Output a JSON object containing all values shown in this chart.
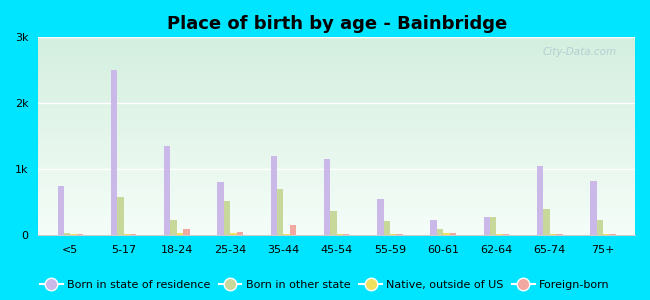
{
  "title": "Place of birth by age - Bainbridge",
  "categories": [
    "<5",
    "5-17",
    "18-24",
    "25-34",
    "35-44",
    "45-54",
    "55-59",
    "60-61",
    "62-64",
    "65-74",
    "75+"
  ],
  "series": {
    "Born in state of residence": [
      750,
      2500,
      1350,
      800,
      1200,
      1150,
      550,
      230,
      280,
      1050,
      820
    ],
    "Born in other state": [
      30,
      580,
      230,
      520,
      700,
      370,
      220,
      100,
      280,
      400,
      230
    ],
    "Native, outside of US": [
      15,
      25,
      40,
      40,
      25,
      15,
      15,
      35,
      20,
      15,
      18
    ],
    "Foreign-born": [
      12,
      25,
      90,
      50,
      160,
      25,
      15,
      40,
      22,
      15,
      22
    ]
  },
  "colors": {
    "Born in state of residence": "#c9b8e8",
    "Born in other state": "#c8d89a",
    "Native, outside of US": "#f0e060",
    "Foreign-born": "#f0a8a0"
  },
  "ylim": [
    0,
    3000
  ],
  "yticks": [
    0,
    1000,
    2000,
    3000
  ],
  "ytick_labels": [
    "0",
    "1k",
    "2k",
    "3k"
  ],
  "outer_bg": "#00e5ff",
  "bar_width": 0.12,
  "title_fontsize": 13,
  "legend_fontsize": 8
}
